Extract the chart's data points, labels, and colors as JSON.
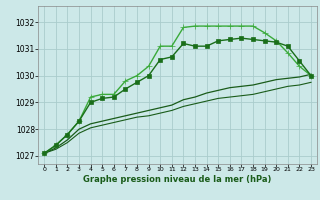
{
  "background_color": "#cce8e8",
  "grid_color": "#aacccc",
  "xlabel": "Graphe pression niveau de la mer (hPa)",
  "xlim": [
    -0.5,
    23.5
  ],
  "ylim": [
    1026.7,
    1032.6
  ],
  "yticks": [
    1027,
    1028,
    1029,
    1030,
    1031,
    1032
  ],
  "xticks": [
    0,
    1,
    2,
    3,
    4,
    5,
    6,
    7,
    8,
    9,
    10,
    11,
    12,
    13,
    14,
    15,
    16,
    17,
    18,
    19,
    20,
    21,
    22,
    23
  ],
  "series": [
    {
      "x": [
        0,
        1,
        2,
        3,
        4,
        5,
        6,
        7,
        8,
        9,
        10,
        11,
        12,
        13,
        14,
        15,
        16,
        17,
        18,
        19,
        20,
        21,
        22,
        23
      ],
      "y": [
        1027.1,
        1027.4,
        1027.8,
        1028.3,
        1029.2,
        1029.3,
        1029.3,
        1029.8,
        1030.0,
        1030.35,
        1031.1,
        1031.1,
        1031.8,
        1031.85,
        1031.85,
        1031.85,
        1031.85,
        1031.85,
        1031.85,
        1031.6,
        1031.3,
        1030.85,
        1030.35,
        1030.0
      ],
      "color": "#3aaa3a",
      "marker": "+",
      "linewidth": 1.0,
      "markersize": 4,
      "zorder": 3
    },
    {
      "x": [
        0,
        1,
        2,
        3,
        4,
        5,
        6,
        7,
        8,
        9,
        10,
        11,
        12,
        13,
        14,
        15,
        16,
        17,
        18,
        19,
        20,
        21,
        22,
        23
      ],
      "y": [
        1027.1,
        1027.4,
        1027.8,
        1028.3,
        1029.0,
        1029.15,
        1029.2,
        1029.5,
        1029.75,
        1030.0,
        1030.6,
        1030.7,
        1031.2,
        1031.1,
        1031.1,
        1031.3,
        1031.35,
        1031.4,
        1031.35,
        1031.3,
        1031.25,
        1031.1,
        1030.55,
        1030.0
      ],
      "color": "#1a6e1a",
      "marker": "s",
      "linewidth": 1.0,
      "markersize": 2.5,
      "zorder": 3
    },
    {
      "x": [
        0,
        1,
        2,
        3,
        4,
        5,
        6,
        7,
        8,
        9,
        10,
        11,
        12,
        13,
        14,
        15,
        16,
        17,
        18,
        19,
        20,
        21,
        22,
        23
      ],
      "y": [
        1027.1,
        1027.3,
        1027.6,
        1028.0,
        1028.2,
        1028.3,
        1028.4,
        1028.5,
        1028.6,
        1028.7,
        1028.8,
        1028.9,
        1029.1,
        1029.2,
        1029.35,
        1029.45,
        1029.55,
        1029.6,
        1029.65,
        1029.75,
        1029.85,
        1029.9,
        1029.95,
        1030.05
      ],
      "color": "#1a5c1a",
      "marker": null,
      "linewidth": 0.9,
      "markersize": 0,
      "zorder": 2
    },
    {
      "x": [
        0,
        1,
        2,
        3,
        4,
        5,
        6,
        7,
        8,
        9,
        10,
        11,
        12,
        13,
        14,
        15,
        16,
        17,
        18,
        19,
        20,
        21,
        22,
        23
      ],
      "y": [
        1027.1,
        1027.25,
        1027.5,
        1027.85,
        1028.05,
        1028.15,
        1028.25,
        1028.35,
        1028.45,
        1028.5,
        1028.6,
        1028.7,
        1028.85,
        1028.95,
        1029.05,
        1029.15,
        1029.2,
        1029.25,
        1029.3,
        1029.4,
        1029.5,
        1029.6,
        1029.65,
        1029.75
      ],
      "color": "#1a5c1a",
      "marker": null,
      "linewidth": 0.8,
      "markersize": 0,
      "zorder": 2
    }
  ]
}
